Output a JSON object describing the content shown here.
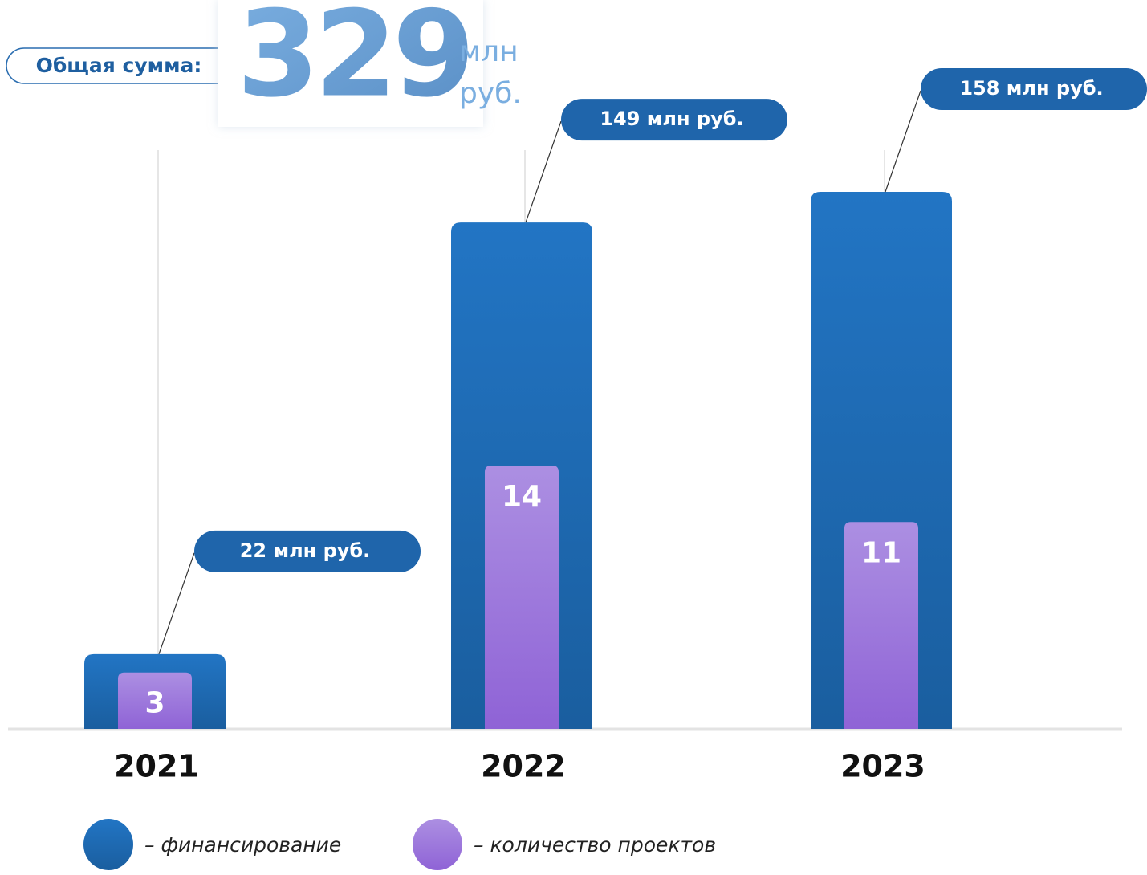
{
  "chart_data": {
    "type": "bar",
    "title": "Общая сумма:",
    "total": "329",
    "total_unit_1": "млн",
    "total_unit_2": "руб.",
    "categories": [
      "2021",
      "2022",
      "2023"
    ],
    "series": [
      {
        "name": "– финансирование",
        "color": "#1f6bb5",
        "values": [
          22,
          149,
          158
        ],
        "value_labels": [
          "22 млн руб.",
          "149 млн руб.",
          "158 млн руб."
        ]
      },
      {
        "name": "– количество проектов",
        "color": "#9d7ade",
        "values": [
          3,
          14,
          11
        ]
      }
    ]
  }
}
